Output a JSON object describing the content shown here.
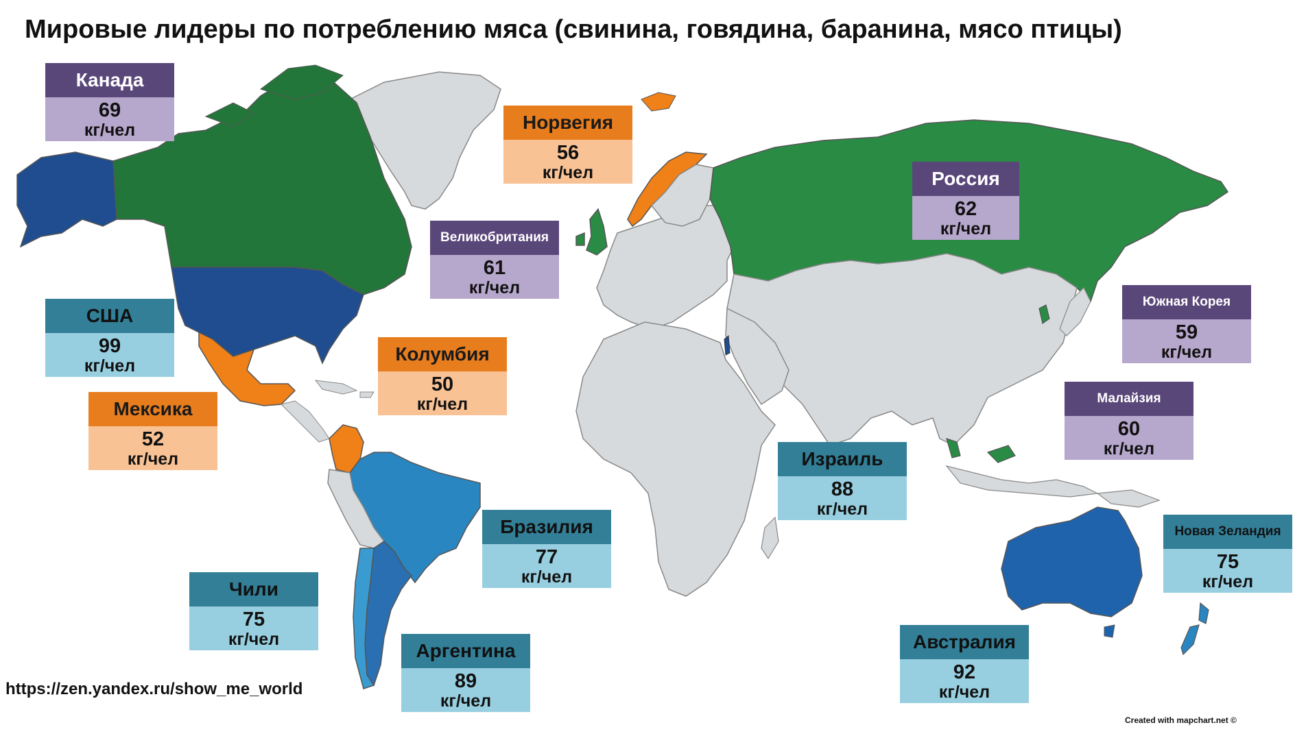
{
  "title": "Мировые лидеры по потреблению мяса (свинина, говядина, баранина, мясо птицы)",
  "unit": "кг/чел",
  "colors": {
    "land": "#d7dadc",
    "border": "#7f7f7f",
    "group_purple": "#2a8b45",
    "group_orange": "#f08018",
    "group_blue_dark": "#1f4d8f",
    "group_blue_mid": "#2a86c0",
    "group_blue_light": "#3a9bd1"
  },
  "countries": [
    {
      "name": "Канада",
      "value": "69",
      "unit": "кг/чел",
      "style": "purple"
    },
    {
      "name": "Норвегия",
      "value": "56",
      "unit": "кг/чел",
      "style": "orange"
    },
    {
      "name": "Россия",
      "value": "62",
      "unit": "кг/чел",
      "style": "purple"
    },
    {
      "name": "Великобритания",
      "value": "61",
      "unit": "кг/чел",
      "style": "purple"
    },
    {
      "name": "США",
      "value": "99",
      "unit": "кг/чел",
      "style": "teal"
    },
    {
      "name": "Колумбия",
      "value": "50",
      "unit": "кг/чел",
      "style": "orange"
    },
    {
      "name": "Южная Корея",
      "value": "59",
      "unit": "кг/чел",
      "style": "purple"
    },
    {
      "name": "Мексика",
      "value": "52",
      "unit": "кг/чел",
      "style": "orange"
    },
    {
      "name": "Малайзия",
      "value": "60",
      "unit": "кг/чел",
      "style": "purple"
    },
    {
      "name": "Израиль",
      "value": "88",
      "unit": "кг/чел",
      "style": "teal"
    },
    {
      "name": "Бразилия",
      "value": "77",
      "unit": "кг/чел",
      "style": "teal"
    },
    {
      "name": "Новая Зеландия",
      "value": "75",
      "unit": "кг/чел",
      "style": "teal"
    },
    {
      "name": "Чили",
      "value": "75",
      "unit": "кг/чел",
      "style": "teal"
    },
    {
      "name": "Аргентина",
      "value": "89",
      "unit": "кг/чел",
      "style": "teal"
    },
    {
      "name": "Австралия",
      "value": "92",
      "unit": "кг/чел",
      "style": "teal"
    }
  ],
  "source": "https://zen.yandex.ru/show_me_world",
  "credit": "Created with mapchart.net ©"
}
